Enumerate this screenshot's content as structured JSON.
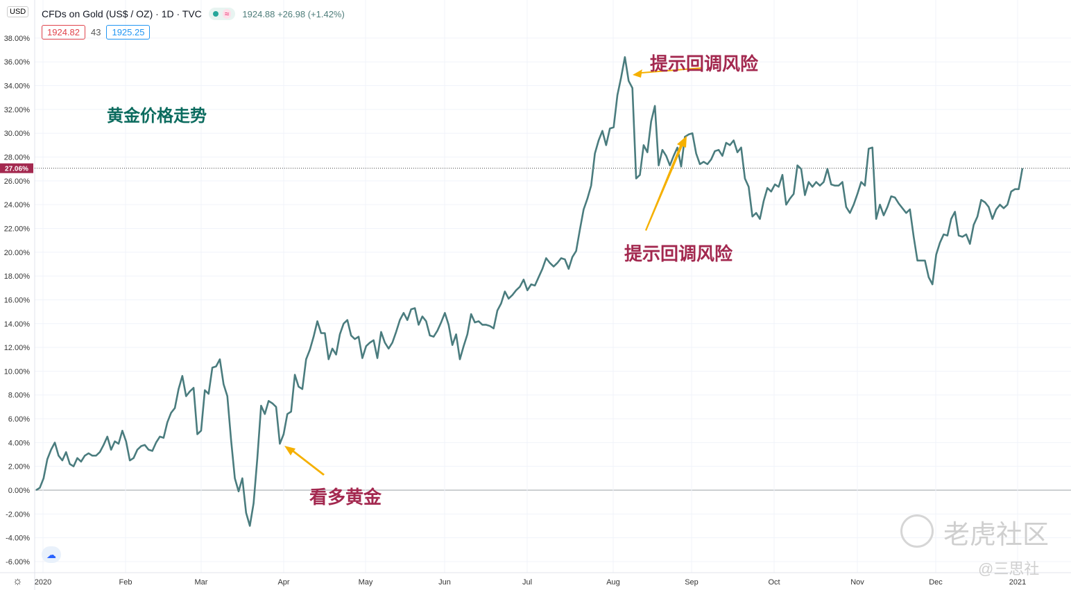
{
  "header": {
    "currency": "USD",
    "symbol": "CFDs on Gold (US$ / OZ) · 1D · TVC",
    "wave_icon": "≈",
    "quote": "1924.88 +26.98 (+1.42%)",
    "bid": "1924.82",
    "spread": "43",
    "ask": "1925.25"
  },
  "annotations": {
    "title": "黄金价格走势",
    "a1": "提示回调风险",
    "a2": "提示回调风险",
    "a3": "看多黄金"
  },
  "watermark": {
    "brand": "老虎社区",
    "author": "@三思社"
  },
  "colors": {
    "line": "#4a7c7e",
    "annotation": "#a3284f",
    "title": "#0b6b5e",
    "arrow": "#f5b000",
    "last_label": "#a3284f"
  },
  "chart_data": {
    "type": "line",
    "title": "",
    "xlabel": "",
    "ylabel": "",
    "ylim": [
      -7,
      39
    ],
    "grid": true,
    "y_unit": "%",
    "yticks": [
      -6,
      -4,
      -2,
      0,
      2,
      4,
      6,
      8,
      10,
      12,
      14,
      16,
      18,
      20,
      22,
      24,
      26,
      28,
      30,
      32,
      34,
      36,
      38
    ],
    "xticks": [
      "2020",
      "Feb",
      "Mar",
      "Apr",
      "May",
      "Jun",
      "Jul",
      "Aug",
      "Sep",
      "Oct",
      "Nov",
      "Dec",
      "2021"
    ],
    "last_value_label": "27.06%",
    "series": [
      {
        "values": [
          0.0,
          0.2,
          1.0,
          2.6,
          3.4,
          4.0,
          2.9,
          2.5,
          3.2,
          2.2,
          2.0,
          2.7,
          2.4,
          2.9,
          3.1,
          2.9,
          2.9,
          3.2,
          3.8,
          4.5,
          3.4,
          4.1,
          3.9,
          5.0,
          4.1,
          2.5,
          2.7,
          3.4,
          3.7,
          3.8,
          3.4,
          3.3,
          4.0,
          4.5,
          4.4,
          5.7,
          6.5,
          6.9,
          8.5,
          9.6,
          7.9,
          8.3,
          8.6,
          4.7,
          5.0,
          8.4,
          8.1,
          10.3,
          10.4,
          11.0,
          8.9,
          7.9,
          4.2,
          1.0,
          -0.1,
          1.0,
          -1.9,
          -3.0,
          -1.1,
          2.7,
          7.1,
          6.4,
          7.5,
          7.3,
          7.0,
          3.9,
          4.7,
          6.4,
          6.6,
          9.7,
          8.7,
          8.5,
          11.0,
          11.8,
          12.9,
          14.2,
          13.2,
          13.2,
          11.0,
          11.9,
          11.4,
          13.1,
          14.0,
          14.3,
          13.0,
          12.7,
          12.9,
          11.1,
          12.1,
          12.4,
          12.6,
          11.1,
          13.3,
          12.4,
          11.9,
          12.4,
          13.3,
          14.3,
          14.9,
          14.3,
          15.2,
          15.3,
          13.9,
          14.6,
          14.2,
          13.0,
          12.9,
          13.4,
          14.1,
          14.9,
          13.9,
          12.2,
          13.1,
          11.0,
          12.1,
          13.1,
          14.8,
          14.1,
          14.2,
          13.9,
          13.9,
          13.8,
          13.6,
          15.1,
          15.7,
          16.7,
          16.1,
          16.4,
          16.8,
          17.1,
          17.7,
          16.8,
          17.3,
          17.2,
          17.9,
          18.6,
          19.5,
          19.1,
          18.8,
          19.1,
          19.5,
          19.4,
          18.6,
          19.6,
          20.1,
          21.9,
          23.6,
          24.5,
          25.6,
          28.3,
          29.4,
          30.2,
          29.0,
          30.4,
          30.5,
          33.2,
          34.7,
          36.4,
          34.4,
          33.8,
          26.2,
          26.5,
          29.0,
          28.4,
          31.0,
          32.3,
          27.3,
          28.6,
          28.1,
          27.3,
          28.1,
          28.8,
          27.2,
          29.7,
          29.9,
          30.0,
          28.3,
          27.4,
          27.6,
          27.4,
          27.8,
          28.5,
          28.6,
          28.1,
          29.2,
          29.0,
          29.4,
          28.4,
          28.8,
          26.2,
          25.5,
          23.0,
          23.3,
          22.8,
          24.3,
          25.4,
          25.1,
          25.7,
          25.5,
          26.5,
          24.0,
          24.5,
          24.9,
          27.3,
          27.0,
          24.8,
          25.9,
          25.5,
          25.9,
          25.6,
          25.9,
          27.0,
          25.7,
          25.6,
          25.6,
          25.9,
          23.8,
          23.3,
          24.0,
          24.9,
          25.9,
          25.6,
          28.7,
          28.8,
          22.8,
          24.0,
          23.1,
          23.8,
          24.7,
          24.6,
          24.1,
          23.7,
          23.3,
          23.6,
          21.3,
          19.3,
          19.3,
          19.3,
          17.9,
          17.3,
          19.8,
          20.8,
          21.5,
          21.4,
          22.8,
          23.4,
          21.4,
          21.3,
          21.5,
          20.7,
          22.3,
          23.0,
          24.4,
          24.2,
          23.8,
          22.8,
          23.6,
          24.0,
          23.7,
          24.0,
          25.1,
          25.3,
          25.3,
          27.06
        ]
      }
    ]
  }
}
